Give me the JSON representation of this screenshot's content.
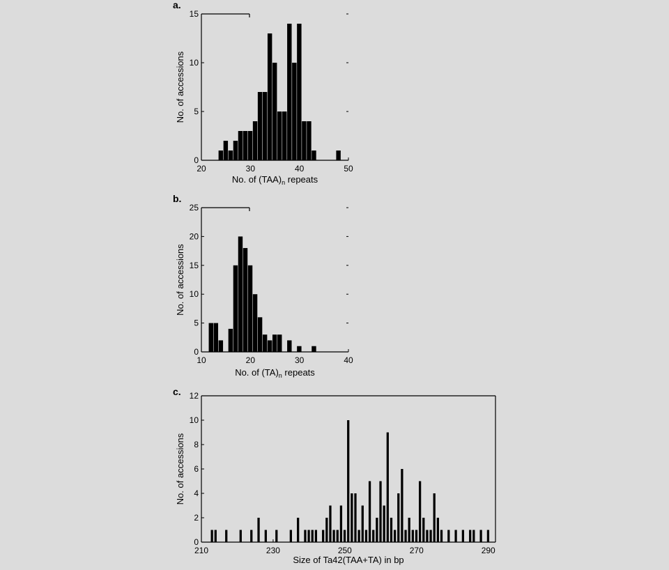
{
  "background": "#dcdcdc",
  "bar_color": "#000000",
  "chart_data": [
    {
      "type": "bar",
      "panel_label": "a.",
      "xlabel_main": "No. of (TAA)",
      "xlabel_sub": "n",
      "xlabel_rest": " repeats",
      "ylabel": "No. of accessions",
      "xlim": [
        20,
        50
      ],
      "ylim": [
        0,
        15
      ],
      "xticks": [
        20,
        30,
        40,
        50
      ],
      "yticks": [
        0,
        5,
        10,
        15
      ],
      "bar_width": 1,
      "x": [
        24,
        25,
        26,
        27,
        28,
        29,
        30,
        31,
        32,
        33,
        34,
        35,
        36,
        37,
        38,
        39,
        40,
        41,
        42,
        43,
        48
      ],
      "values": [
        1,
        2,
        1,
        2,
        3,
        3,
        3,
        4,
        7,
        7,
        13,
        10,
        5,
        5,
        14,
        10,
        14,
        4,
        4,
        1,
        1
      ]
    },
    {
      "type": "bar",
      "panel_label": "b.",
      "xlabel_main": "No. of (TA)",
      "xlabel_sub": "n",
      "xlabel_rest": " repeats",
      "ylabel": "No. of accessions",
      "xlim": [
        10,
        40
      ],
      "ylim": [
        0,
        25
      ],
      "xticks": [
        10,
        20,
        30,
        40
      ],
      "yticks": [
        0,
        5,
        10,
        15,
        20,
        25
      ],
      "bar_width": 1,
      "x": [
        12,
        13,
        14,
        16,
        17,
        18,
        19,
        20,
        21,
        22,
        23,
        24,
        25,
        26,
        28,
        30,
        33
      ],
      "values": [
        5,
        5,
        2,
        4,
        15,
        20,
        18,
        15,
        10,
        6,
        3,
        2,
        3,
        3,
        2,
        1,
        1
      ]
    },
    {
      "type": "bar",
      "panel_label": "c.",
      "xlabel_main": "Size of Ta42(TAA+TA) in bp",
      "xlabel_sub": "",
      "xlabel_rest": "",
      "ylabel": "No. of accessions",
      "xlim": [
        210,
        292
      ],
      "ylim": [
        0,
        12
      ],
      "xticks": [
        210,
        230,
        250,
        270,
        290
      ],
      "yticks": [
        0,
        2,
        4,
        6,
        8,
        10,
        12
      ],
      "bar_width": 0.75,
      "x": [
        213,
        214,
        217,
        221,
        224,
        226,
        228,
        231,
        235,
        237,
        239,
        240,
        241,
        242,
        244,
        245,
        246,
        247,
        248,
        249,
        250,
        251,
        252,
        253,
        254,
        255,
        256,
        257,
        258,
        259,
        260,
        261,
        262,
        263,
        264,
        265,
        266,
        267,
        268,
        269,
        270,
        271,
        272,
        273,
        274,
        275,
        276,
        277,
        279,
        281,
        283,
        285,
        286,
        288,
        290
      ],
      "values": [
        1,
        1,
        1,
        1,
        1,
        2,
        1,
        1,
        1,
        2,
        1,
        1,
        1,
        1,
        1,
        2,
        3,
        1,
        1,
        3,
        1,
        10,
        4,
        4,
        1,
        3,
        1,
        5,
        1,
        2,
        5,
        3,
        9,
        2,
        1,
        4,
        6,
        1,
        2,
        1,
        1,
        5,
        2,
        1,
        1,
        4,
        2,
        1,
        1,
        1,
        1,
        1,
        1,
        1,
        1
      ]
    }
  ]
}
